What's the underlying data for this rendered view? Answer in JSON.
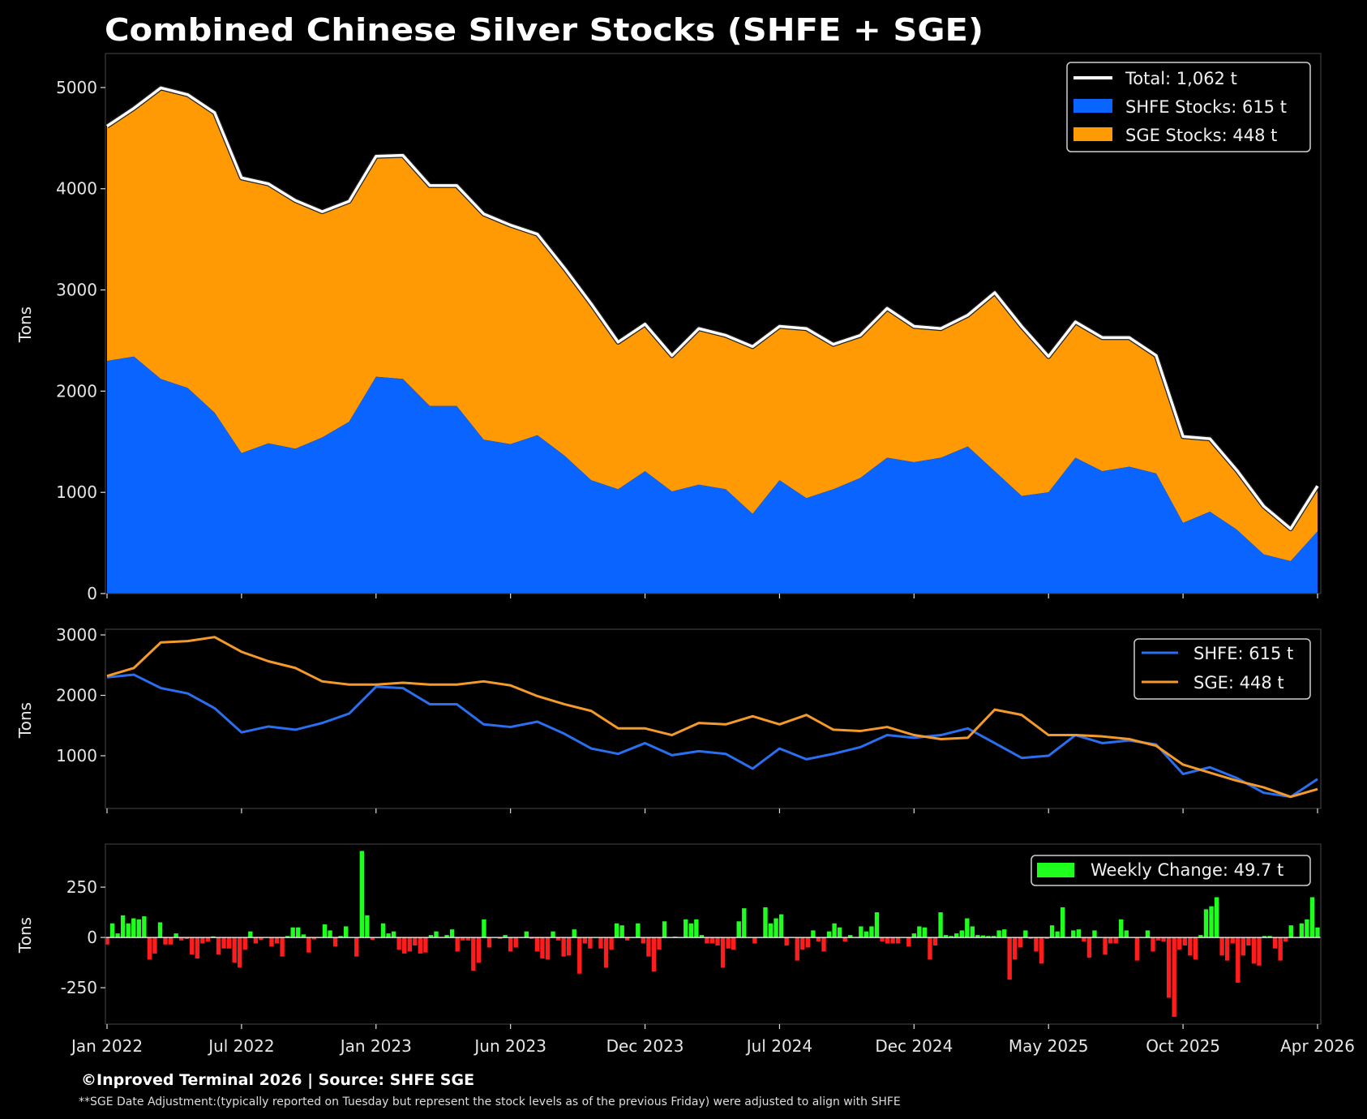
{
  "title": "Combined Chinese Silver Stocks (SHFE + SGE)",
  "footer": {
    "credit": "©Inproved Terminal 2026 | Source: SHFE SGE",
    "note": "**SGE Date Adjustment:(typically reported on Tuesday but represent the stock levels as of the previous Friday) were adjusted to align with SHFE"
  },
  "colors": {
    "background": "#000000",
    "shfe_area": "#0a64ff",
    "sge_area": "#ff9a05",
    "total_line": "#ffffff",
    "shfe_line": "#2a6ff0",
    "sge_line": "#f39a2a",
    "gain": "#1eff1e",
    "loss": "#ff1c1c"
  },
  "x_tick_labels": [
    "Jan 2022",
    "Jul 2022",
    "Jan 2023",
    "Jun 2023",
    "Dec 2023",
    "Jul 2024",
    "Dec 2024",
    "May 2025",
    "Oct 2025",
    "Apr 2026"
  ],
  "chart_data": [
    {
      "type": "area",
      "stacked": true,
      "ylabel": "Tons",
      "ylim": [
        0,
        5336
      ],
      "yticks": [
        0,
        1000,
        2000,
        3000,
        4000,
        5000
      ],
      "grid": false,
      "legend_position": "top-right",
      "legend": [
        "Total: 1,062 t",
        "SHFE Stocks: 615 t",
        "SGE Stocks: 448 t"
      ],
      "series": [
        {
          "name": "SHFE Stocks: 615 t",
          "values": [
            2298,
            2342,
            2120,
            2031,
            1787,
            1387,
            1484,
            1431,
            1542,
            1698,
            2142,
            2120,
            1853,
            1853,
            1520,
            1476,
            1564,
            1364,
            1120,
            1031,
            1209,
            1009,
            1076,
            1031,
            787,
            1120,
            942,
            1031,
            1142,
            1342,
            1298,
            1342,
            1453,
            1209,
            964,
            1000,
            1342,
            1209,
            1253,
            1187,
            698,
            809,
            631,
            387,
            320,
            615
          ]
        },
        {
          "name": "SGE Stocks: 448 t",
          "values": [
            2320,
            2453,
            2876,
            2898,
            2964,
            2720,
            2564,
            2453,
            2231,
            2178,
            2178,
            2209,
            2178,
            2178,
            2231,
            2164,
            1987,
            1853,
            1742,
            1453,
            1453,
            1342,
            1542,
            1520,
            1653,
            1520,
            1676,
            1431,
            1409,
            1476,
            1342,
            1276,
            1298,
            1764,
            1676,
            1342,
            1342,
            1320,
            1276,
            1165,
            853,
            720,
            587,
            476,
            320,
            448
          ]
        }
      ],
      "total_name": "Total: 1,062 t"
    },
    {
      "type": "line",
      "ylabel": "Tons",
      "ylim": [
        128,
        3094
      ],
      "yticks": [
        1000,
        2000,
        3000
      ],
      "grid": false,
      "legend_position": "top-right",
      "series": [
        {
          "name": "SHFE: 615 t",
          "values": [
            2298,
            2342,
            2120,
            2031,
            1787,
            1387,
            1484,
            1431,
            1542,
            1698,
            2142,
            2120,
            1853,
            1853,
            1520,
            1476,
            1564,
            1364,
            1120,
            1031,
            1209,
            1009,
            1076,
            1031,
            787,
            1120,
            942,
            1031,
            1142,
            1342,
            1298,
            1342,
            1453,
            1209,
            964,
            1000,
            1342,
            1209,
            1253,
            1187,
            698,
            809,
            631,
            387,
            320,
            615
          ]
        },
        {
          "name": "SGE: 448 t",
          "values": [
            2320,
            2453,
            2876,
            2898,
            2964,
            2720,
            2564,
            2453,
            2231,
            2178,
            2178,
            2209,
            2178,
            2178,
            2231,
            2164,
            1987,
            1853,
            1742,
            1453,
            1453,
            1342,
            1542,
            1520,
            1653,
            1520,
            1676,
            1431,
            1409,
            1476,
            1342,
            1276,
            1298,
            1764,
            1676,
            1342,
            1342,
            1320,
            1276,
            1165,
            853,
            720,
            587,
            476,
            320,
            448
          ]
        }
      ]
    },
    {
      "type": "bar",
      "ylabel": "Tons",
      "ylim": [
        -431,
        464
      ],
      "yticks": [
        -250,
        0,
        250
      ],
      "grid": false,
      "legend_position": "top-right",
      "series": [
        {
          "name": "Weekly Change: 49.7 t",
          "values": [
            -35,
            70,
            20,
            110,
            70,
            95,
            90,
            105,
            -110,
            -80,
            75,
            -35,
            -35,
            20,
            -15,
            -8,
            -85,
            -105,
            -30,
            -20,
            5,
            -85,
            -55,
            -55,
            -125,
            -150,
            -60,
            30,
            -30,
            -12,
            0,
            -45,
            -30,
            -95,
            7,
            50,
            50,
            15,
            -75,
            -10,
            0,
            65,
            35,
            -45,
            7,
            55,
            0,
            -95,
            430,
            110,
            -12,
            0,
            70,
            20,
            30,
            -60,
            -80,
            -70,
            -40,
            -80,
            -75,
            12,
            30,
            0,
            12,
            40,
            -70,
            -15,
            -15,
            -165,
            -125,
            90,
            -50,
            0,
            -7,
            12,
            -70,
            -50,
            0,
            30,
            -7,
            -70,
            -105,
            -110,
            30,
            -15,
            -95,
            -90,
            40,
            -180,
            -30,
            -55,
            0,
            -55,
            -150,
            -60,
            70,
            60,
            -15,
            0,
            70,
            -30,
            -95,
            -170,
            -60,
            80,
            0,
            4,
            0,
            90,
            70,
            90,
            12,
            -30,
            -30,
            -40,
            -150,
            -55,
            -60,
            80,
            145,
            0,
            -30,
            0,
            150,
            70,
            95,
            115,
            -40,
            0,
            -115,
            -60,
            -50,
            35,
            -20,
            -70,
            30,
            70,
            50,
            -20,
            12,
            0,
            55,
            30,
            55,
            125,
            -20,
            -30,
            -30,
            -30,
            0,
            -45,
            20,
            55,
            50,
            -110,
            -40,
            125,
            12,
            7,
            20,
            35,
            95,
            55,
            12,
            10,
            7,
            7,
            35,
            40,
            -210,
            -110,
            -50,
            35,
            -7,
            -70,
            -130,
            -7,
            60,
            30,
            150,
            0,
            35,
            40,
            -20,
            -100,
            35,
            0,
            -85,
            -30,
            -30,
            90,
            35,
            0,
            -115,
            0,
            35,
            -70,
            -15,
            -20,
            -300,
            -395,
            -60,
            -40,
            -90,
            -110,
            12,
            140,
            155,
            200,
            -90,
            -115,
            -30,
            -225,
            -90,
            -40,
            -130,
            -140,
            7,
            7,
            -55,
            -115,
            -20,
            60,
            0,
            70,
            90,
            200,
            49.7
          ]
        }
      ]
    }
  ]
}
